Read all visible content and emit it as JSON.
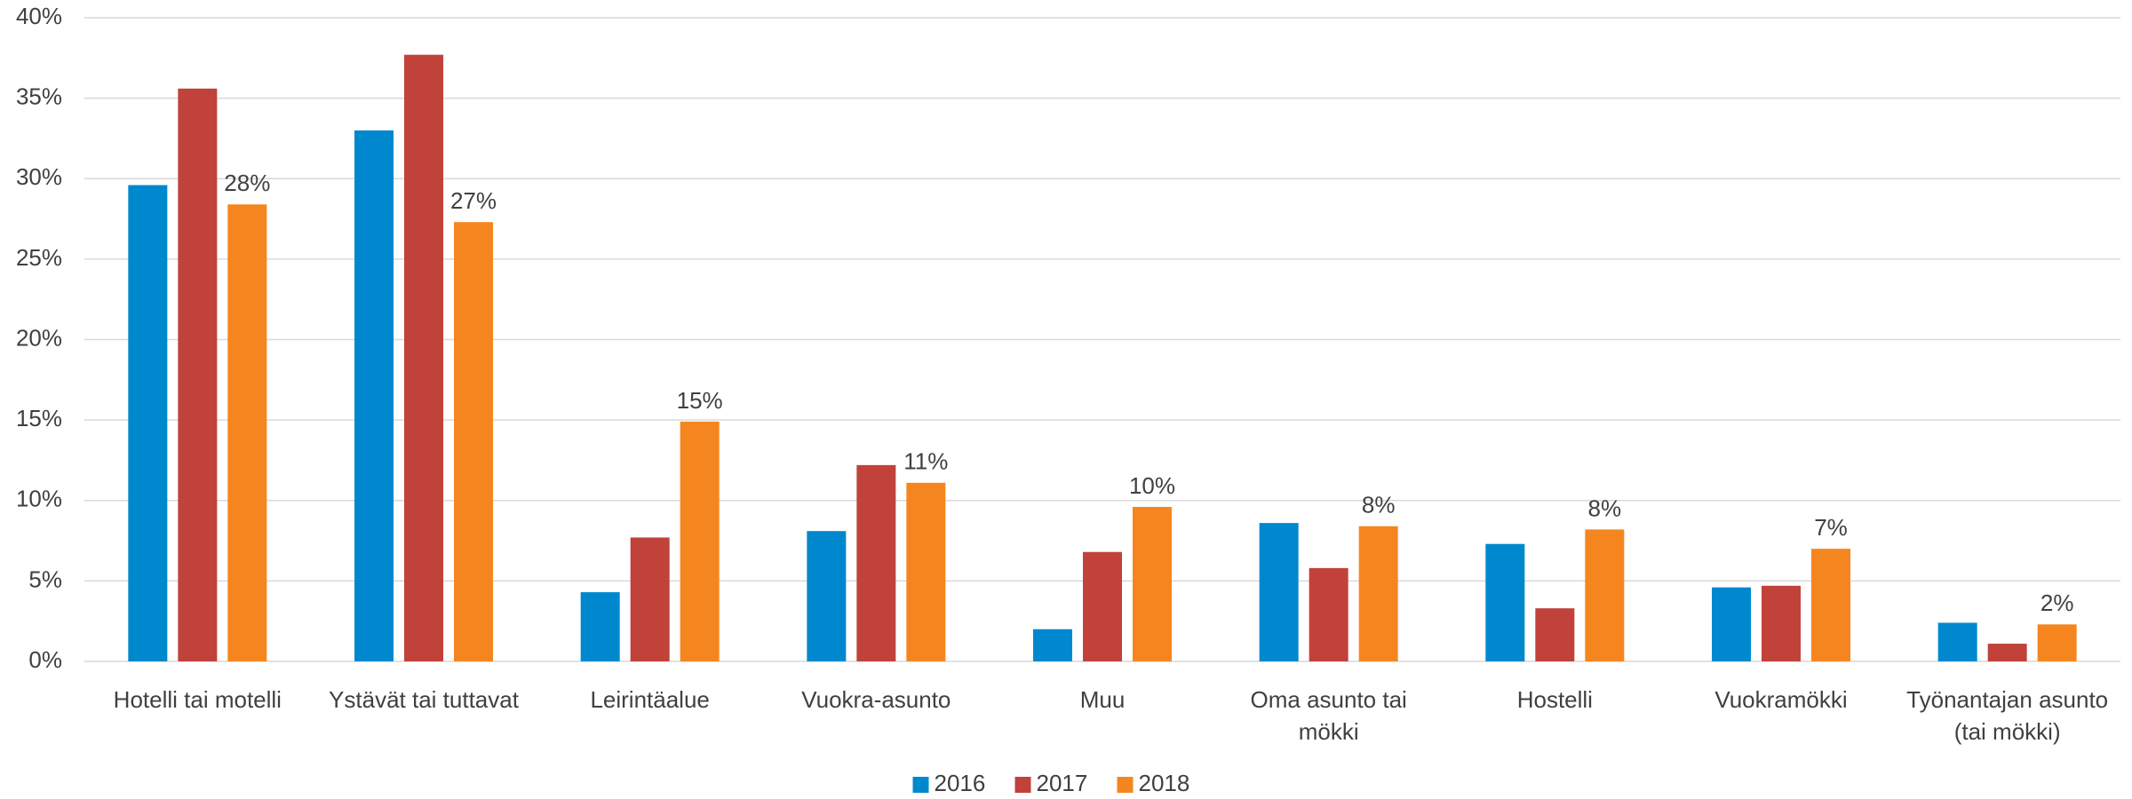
{
  "chart_data": {
    "type": "bar",
    "categories": [
      "Hotelli tai motelli",
      "Ystävät tai tuttavat",
      "Leirintäalue",
      "Vuokra-asunto",
      "Muu",
      "Oma asunto tai mökki",
      "Hostelli",
      "Vuokramökki",
      "Työnantajan asunto (tai mökki)"
    ],
    "series": [
      {
        "name": "2016",
        "color": "#0088ce",
        "values": [
          29.6,
          33.0,
          4.3,
          8.1,
          2.0,
          8.6,
          7.3,
          4.6,
          2.4
        ]
      },
      {
        "name": "2017",
        "color": "#c0423b",
        "values": [
          35.6,
          37.7,
          7.7,
          12.2,
          6.8,
          5.8,
          3.3,
          4.7,
          1.1
        ]
      },
      {
        "name": "2018",
        "color": "#f5861f",
        "values": [
          28.4,
          27.3,
          14.9,
          11.1,
          9.6,
          8.4,
          8.2,
          7.0,
          2.3
        ],
        "value_labels": [
          "28%",
          "27%",
          "15%",
          "11%",
          "10%",
          "8%",
          "8%",
          "7%",
          "2%"
        ]
      }
    ],
    "ylim": [
      0,
      40
    ],
    "yticks": [
      {
        "value": 0,
        "label": "0%"
      },
      {
        "value": 5,
        "label": "5%"
      },
      {
        "value": 10,
        "label": "10%"
      },
      {
        "value": 15,
        "label": "15%"
      },
      {
        "value": 20,
        "label": "20%"
      },
      {
        "value": 25,
        "label": "25%"
      },
      {
        "value": 30,
        "label": "30%"
      },
      {
        "value": 35,
        "label": "35%"
      },
      {
        "value": 40,
        "label": "40%"
      }
    ],
    "grid": true,
    "legend": "bottom"
  }
}
